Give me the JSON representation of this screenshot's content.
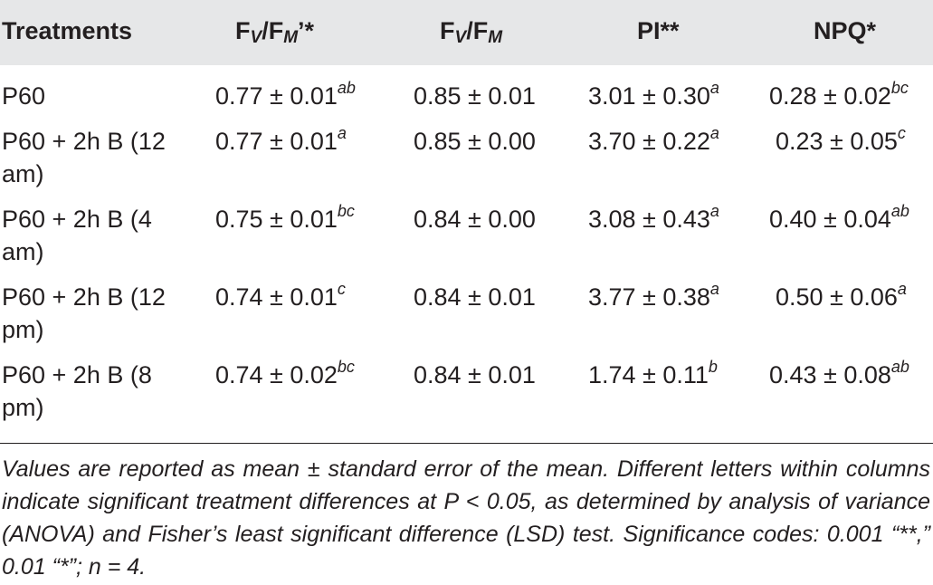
{
  "table": {
    "headers": {
      "treatments": "Treatments",
      "fv_fm_prime": {
        "base": "F",
        "sub1": "V",
        "mid": "/F",
        "sub2": "M",
        "suffix": "’*"
      },
      "fv_fm": {
        "base": "F",
        "sub1": "V",
        "mid": "/F",
        "sub2": "M"
      },
      "pi": "PI**",
      "npq": "NPQ*"
    },
    "rows": [
      {
        "treatment": "P60",
        "fv_fm_prime": {
          "value": "0.77 ± 0.01",
          "letters": "ab"
        },
        "fv_fm": {
          "value": "0.85 ± 0.01"
        },
        "pi": {
          "value": "3.01 ± 0.30",
          "letters": "a"
        },
        "npq": {
          "value": "0.28 ± 0.02",
          "letters": "bc"
        }
      },
      {
        "treatment": "P60 + 2h B (12 am)",
        "fv_fm_prime": {
          "value": "0.77 ± 0.01",
          "letters": "a"
        },
        "fv_fm": {
          "value": "0.85 ± 0.00"
        },
        "pi": {
          "value": "3.70 ± 0.22",
          "letters": "a"
        },
        "npq": {
          "value": "0.23 ± 0.05",
          "letters": "c"
        }
      },
      {
        "treatment": "P60 + 2h B (4 am)",
        "fv_fm_prime": {
          "value": "0.75 ± 0.01",
          "letters": "bc"
        },
        "fv_fm": {
          "value": "0.84 ± 0.00"
        },
        "pi": {
          "value": "3.08 ± 0.43",
          "letters": "a"
        },
        "npq": {
          "value": "0.40 ± 0.04",
          "letters": "ab"
        }
      },
      {
        "treatment": "P60 + 2h B (12 pm)",
        "fv_fm_prime": {
          "value": "0.74 ± 0.01",
          "letters": "c"
        },
        "fv_fm": {
          "value": "0.84 ± 0.01"
        },
        "pi": {
          "value": "3.77 ± 0.38",
          "letters": "a"
        },
        "npq": {
          "value": "0.50 ± 0.06",
          "letters": "a"
        }
      },
      {
        "treatment": "P60 + 2h B (8 pm)",
        "fv_fm_prime": {
          "value": "0.74 ± 0.02",
          "letters": "bc"
        },
        "fv_fm": {
          "value": "0.84 ± 0.01"
        },
        "pi": {
          "value": "1.74 ± 0.11",
          "letters": "b"
        },
        "npq": {
          "value": "0.43 ± 0.08",
          "letters": "ab"
        }
      }
    ],
    "footnote": "Values are reported as mean ± standard error of the mean. Different letters within columns indicate significant treatment differences at P < 0.05, as determined by analysis of variance (ANOVA) and Fisher’s least significant difference (LSD) test. Significance codes: 0.001 “**,” 0.01 “*”; n = 4."
  },
  "colors": {
    "header_background": "#e6e7e8",
    "text": "#231f20",
    "rule": "#231f20"
  }
}
